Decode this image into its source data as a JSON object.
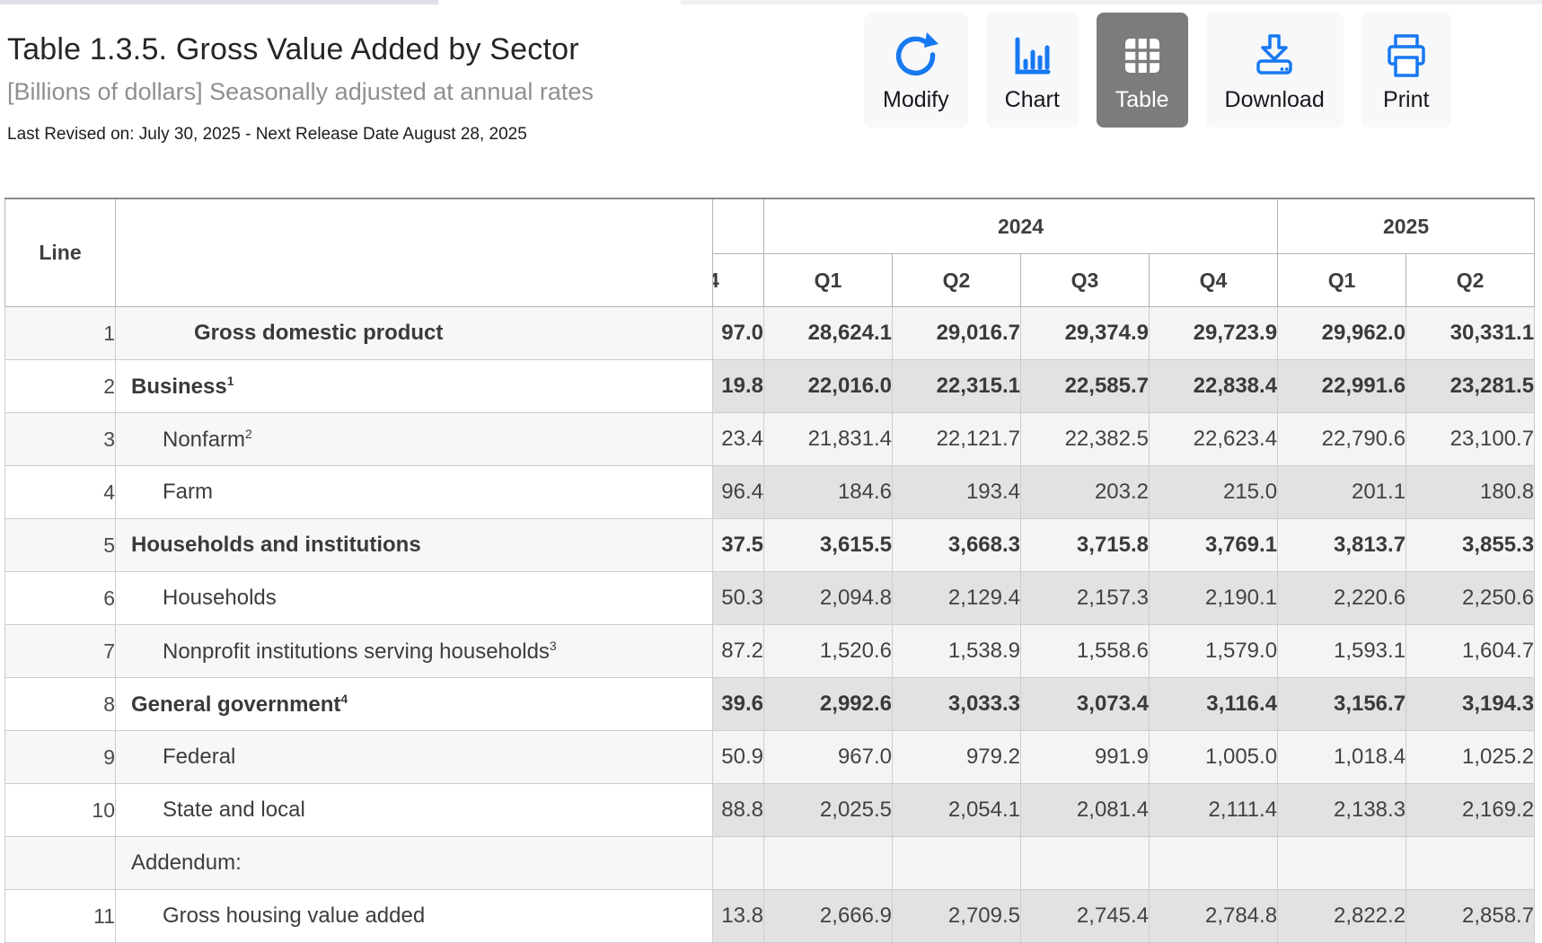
{
  "header": {
    "title": "Table 1.3.5. Gross Value Added by Sector",
    "subtitle": "[Billions of dollars] Seasonally adjusted at annual rates",
    "revision_note": "Last Revised on: July 30, 2025 - Next Release Date August 28, 2025"
  },
  "toolbar": {
    "buttons": [
      {
        "id": "modify",
        "label": "Modify",
        "icon": "refresh-icon",
        "selected": false
      },
      {
        "id": "chart",
        "label": "Chart",
        "icon": "bar-chart-icon",
        "selected": false
      },
      {
        "id": "table",
        "label": "Table",
        "icon": "table-grid-icon",
        "selected": true
      },
      {
        "id": "download",
        "label": "Download",
        "icon": "download-icon",
        "selected": false
      },
      {
        "id": "print",
        "label": "Print",
        "icon": "printer-icon",
        "selected": false
      }
    ]
  },
  "table": {
    "line_header": "Line",
    "partial_column": {
      "year_label": "",
      "quarter_label": "4"
    },
    "year_groups": [
      {
        "label": "2024",
        "span": 4
      },
      {
        "label": "2025",
        "span": 2
      }
    ],
    "quarters": [
      "Q1",
      "Q2",
      "Q3",
      "Q4",
      "Q1",
      "Q2"
    ],
    "rows": [
      {
        "line": "1",
        "label": "Gross domestic product",
        "sup": "",
        "indent": 2,
        "bold": true,
        "partial": "97.0",
        "values": [
          "28,624.1",
          "29,016.7",
          "29,374.9",
          "29,723.9",
          "29,962.0",
          "30,331.1"
        ]
      },
      {
        "line": "2",
        "label": "Business",
        "sup": "1",
        "indent": 0,
        "bold": true,
        "partial": "19.8",
        "values": [
          "22,016.0",
          "22,315.1",
          "22,585.7",
          "22,838.4",
          "22,991.6",
          "23,281.5"
        ]
      },
      {
        "line": "3",
        "label": "Nonfarm",
        "sup": "2",
        "indent": 1,
        "bold": false,
        "partial": "23.4",
        "values": [
          "21,831.4",
          "22,121.7",
          "22,382.5",
          "22,623.4",
          "22,790.6",
          "23,100.7"
        ]
      },
      {
        "line": "4",
        "label": "Farm",
        "sup": "",
        "indent": 1,
        "bold": false,
        "partial": "96.4",
        "values": [
          "184.6",
          "193.4",
          "203.2",
          "215.0",
          "201.1",
          "180.8"
        ]
      },
      {
        "line": "5",
        "label": "Households and institutions",
        "sup": "",
        "indent": 0,
        "bold": true,
        "partial": "37.5",
        "values": [
          "3,615.5",
          "3,668.3",
          "3,715.8",
          "3,769.1",
          "3,813.7",
          "3,855.3"
        ]
      },
      {
        "line": "6",
        "label": "Households",
        "sup": "",
        "indent": 1,
        "bold": false,
        "partial": "50.3",
        "values": [
          "2,094.8",
          "2,129.4",
          "2,157.3",
          "2,190.1",
          "2,220.6",
          "2,250.6"
        ]
      },
      {
        "line": "7",
        "label": "Nonprofit institutions serving households",
        "sup": "3",
        "indent": 1,
        "bold": false,
        "partial": "87.2",
        "values": [
          "1,520.6",
          "1,538.9",
          "1,558.6",
          "1,579.0",
          "1,593.1",
          "1,604.7"
        ]
      },
      {
        "line": "8",
        "label": "General government",
        "sup": "4",
        "indent": 0,
        "bold": true,
        "partial": "39.6",
        "values": [
          "2,992.6",
          "3,033.3",
          "3,073.4",
          "3,116.4",
          "3,156.7",
          "3,194.3"
        ]
      },
      {
        "line": "9",
        "label": "Federal",
        "sup": "",
        "indent": 1,
        "bold": false,
        "partial": "50.9",
        "values": [
          "967.0",
          "979.2",
          "991.9",
          "1,005.0",
          "1,018.4",
          "1,025.2"
        ]
      },
      {
        "line": "10",
        "label": "State and local",
        "sup": "",
        "indent": 1,
        "bold": false,
        "partial": "88.8",
        "values": [
          "2,025.5",
          "2,054.1",
          "2,081.4",
          "2,111.4",
          "2,138.3",
          "2,169.2"
        ]
      },
      {
        "line": "",
        "label": "Addendum:",
        "sup": "",
        "indent": 0,
        "bold": false,
        "partial": "",
        "values": [
          "",
          "",
          "",
          "",
          "",
          ""
        ]
      },
      {
        "line": "11",
        "label": "Gross housing value added",
        "sup": "",
        "indent": 1,
        "bold": false,
        "partial": "13.8",
        "values": [
          "2,666.9",
          "2,709.5",
          "2,745.4",
          "2,784.8",
          "2,822.2",
          "2,858.7"
        ]
      }
    ]
  },
  "colors": {
    "accent_blue": "#1679f2",
    "selected_gray": "#7c7c7c",
    "stripe_light": "#f4f4f4",
    "stripe_dark": "#e2e2e2"
  }
}
